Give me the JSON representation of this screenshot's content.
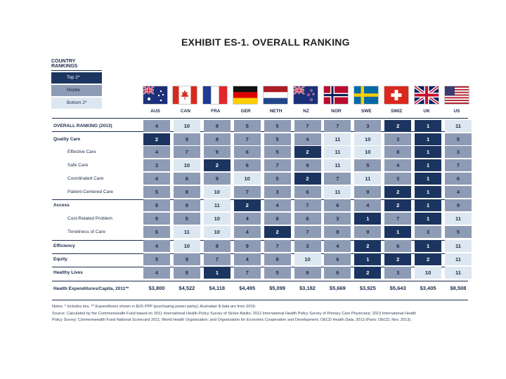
{
  "title": "EXHIBIT ES-1. OVERALL RANKING",
  "legend": {
    "title": "COUNTRY RANKINGS",
    "items": [
      "Top 2*",
      "Middle",
      "Bottom 2*"
    ],
    "colors": {
      "top": "#1b3560",
      "middle": "#8e9bb5",
      "bottom": "#dde7f1"
    }
  },
  "chart_data": {
    "type": "table",
    "title": "EXHIBIT ES-1. OVERALL RANKING",
    "countries": [
      "AUS",
      "CAN",
      "FRA",
      "GER",
      "NETH",
      "NZ",
      "NOR",
      "SWE",
      "SWIZ",
      "UK",
      "US"
    ],
    "rows": [
      {
        "label": "OVERALL RANKING (2013)",
        "style": "bold",
        "ranks": [
          4,
          10,
          9,
          5,
          5,
          7,
          7,
          3,
          2,
          1,
          11
        ]
      },
      {
        "label": "Quality Care",
        "style": "bold",
        "ranks": [
          2,
          9,
          8,
          7,
          5,
          4,
          11,
          10,
          3,
          1,
          5
        ]
      },
      {
        "label": "Effective Care",
        "style": "indent",
        "ranks": [
          4,
          7,
          9,
          6,
          5,
          2,
          11,
          10,
          8,
          1,
          3
        ]
      },
      {
        "label": "Safe Care",
        "style": "indent",
        "ranks": [
          3,
          10,
          2,
          6,
          7,
          9,
          11,
          5,
          4,
          1,
          7
        ]
      },
      {
        "label": "Coordinated Care",
        "style": "indent",
        "ranks": [
          4,
          8,
          9,
          10,
          5,
          2,
          7,
          11,
          3,
          1,
          6
        ]
      },
      {
        "label": "Patient-Centered Care",
        "style": "indent",
        "ranks": [
          5,
          8,
          10,
          7,
          3,
          6,
          11,
          9,
          2,
          1,
          4
        ]
      },
      {
        "label": "Access",
        "style": "bold",
        "ranks": [
          8,
          9,
          11,
          2,
          4,
          7,
          6,
          4,
          2,
          1,
          9
        ]
      },
      {
        "label": "Cost-Related Problem",
        "style": "indent",
        "ranks": [
          9,
          5,
          10,
          4,
          8,
          6,
          3,
          1,
          7,
          1,
          11
        ]
      },
      {
        "label": "Timeliness of Care",
        "style": "indent",
        "ranks": [
          6,
          11,
          10,
          4,
          2,
          7,
          8,
          9,
          1,
          3,
          5
        ]
      },
      {
        "label": "Efficiency",
        "style": "bold",
        "ranks": [
          4,
          10,
          8,
          9,
          7,
          3,
          4,
          2,
          6,
          1,
          11
        ]
      },
      {
        "label": "Equity",
        "style": "bold",
        "ranks": [
          5,
          9,
          7,
          4,
          8,
          10,
          6,
          1,
          2,
          2,
          11
        ]
      },
      {
        "label": "Healthy Lives",
        "style": "bold",
        "ranks": [
          4,
          8,
          1,
          7,
          5,
          9,
          6,
          2,
          3,
          10,
          11
        ]
      }
    ],
    "expenditures": {
      "label": "Health Expenditures/Capita, 2011**",
      "values": [
        "$3,800",
        "$4,522",
        "$4,118",
        "$4,495",
        "$5,099",
        "$3,182",
        "$5,669",
        "$3,925",
        "$5,643",
        "$3,405",
        "$8,508"
      ]
    }
  },
  "notes": [
    "Notes: * Includes ties. ** Expenditures shown in $US PPP (purchasing power parity); Australian $ data are from 2010.",
    "Source: Calculated by the Commonwealth Fund based on 2011 International Health Policy Survey of Sicker Adults; 2012 International Health Policy Survey of Primary Care Physicians; 2013 International Health",
    "Policy Survey; Commonwealth Fund National Scorecard 2011; World Health Organization; and Organization for Economic Cooperation and Development, OECD Health Data, 2013 (Paris: OECD, Nov. 2013)."
  ]
}
